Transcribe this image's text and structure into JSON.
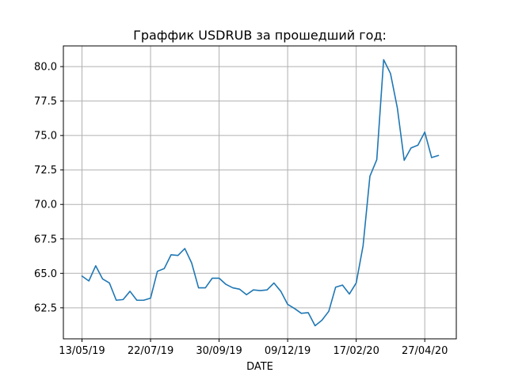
{
  "chart_data": {
    "type": "line",
    "title": "Граффик USDRUB за прошедший год:",
    "xlabel": "DATE",
    "ylabel": "",
    "ylim": [
      60.25,
      81.5
    ],
    "grid": true,
    "x_tick_labels": [
      "13/05/19",
      "22/07/19",
      "30/09/19",
      "09/12/19",
      "17/02/20",
      "27/04/20"
    ],
    "y_tick_labels": [
      "62.5",
      "65.0",
      "67.5",
      "70.0",
      "72.5",
      "75.0",
      "77.5",
      "80.0"
    ],
    "y_ticks": [
      62.5,
      65.0,
      67.5,
      70.0,
      72.5,
      75.0,
      77.5,
      80.0
    ],
    "line_color": "#1f77b4",
    "series": [
      {
        "x": [
          "13/05/19",
          "20/05/19",
          "27/05/19",
          "03/06/19",
          "10/06/19",
          "17/06/19",
          "24/06/19",
          "01/07/19",
          "08/07/19",
          "15/07/19",
          "22/07/19",
          "29/07/19",
          "05/08/19",
          "12/08/19",
          "19/08/19",
          "26/08/19",
          "02/09/19",
          "09/09/19",
          "16/09/19",
          "23/09/19",
          "30/09/19",
          "07/10/19",
          "14/10/19",
          "21/10/19",
          "28/10/19",
          "04/11/19",
          "11/11/19",
          "18/11/19",
          "25/11/19",
          "02/12/19",
          "09/12/19",
          "16/12/19",
          "23/12/19",
          "30/12/19",
          "06/01/20",
          "13/01/20",
          "20/01/20",
          "27/01/20",
          "03/02/20",
          "10/02/20",
          "17/02/20",
          "24/02/20",
          "02/03/20",
          "09/03/20",
          "16/03/20",
          "23/03/20",
          "30/03/20",
          "06/04/20",
          "13/04/20",
          "20/04/20",
          "27/04/20",
          "04/05/20",
          "11/05/20"
        ],
        "values": [
          64.8,
          64.45,
          65.55,
          64.6,
          64.3,
          63.05,
          63.1,
          63.7,
          63.05,
          63.05,
          63.2,
          65.15,
          65.35,
          66.35,
          66.3,
          66.8,
          65.75,
          63.95,
          63.95,
          64.65,
          64.65,
          64.2,
          63.95,
          63.85,
          63.45,
          63.8,
          63.75,
          63.8,
          64.3,
          63.7,
          62.75,
          62.45,
          62.1,
          62.15,
          61.2,
          61.6,
          62.25,
          64.0,
          64.15,
          63.5,
          64.3,
          67.0,
          72.05,
          73.25,
          80.5,
          79.5,
          77.0,
          73.2,
          74.1,
          74.3,
          75.25,
          73.4,
          73.55
        ]
      }
    ]
  }
}
